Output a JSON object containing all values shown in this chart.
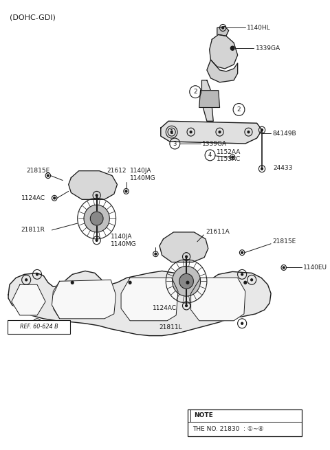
{
  "bg_color": "#ffffff",
  "line_color": "#1a1a1a",
  "text_color": "#1a1a1a",
  "header_text": "(DOHC-GDI)",
  "note_label": "NOTE",
  "note_text": "THE NO. 21830  : ①~④",
  "ref_text": "REF. 60-624 B"
}
